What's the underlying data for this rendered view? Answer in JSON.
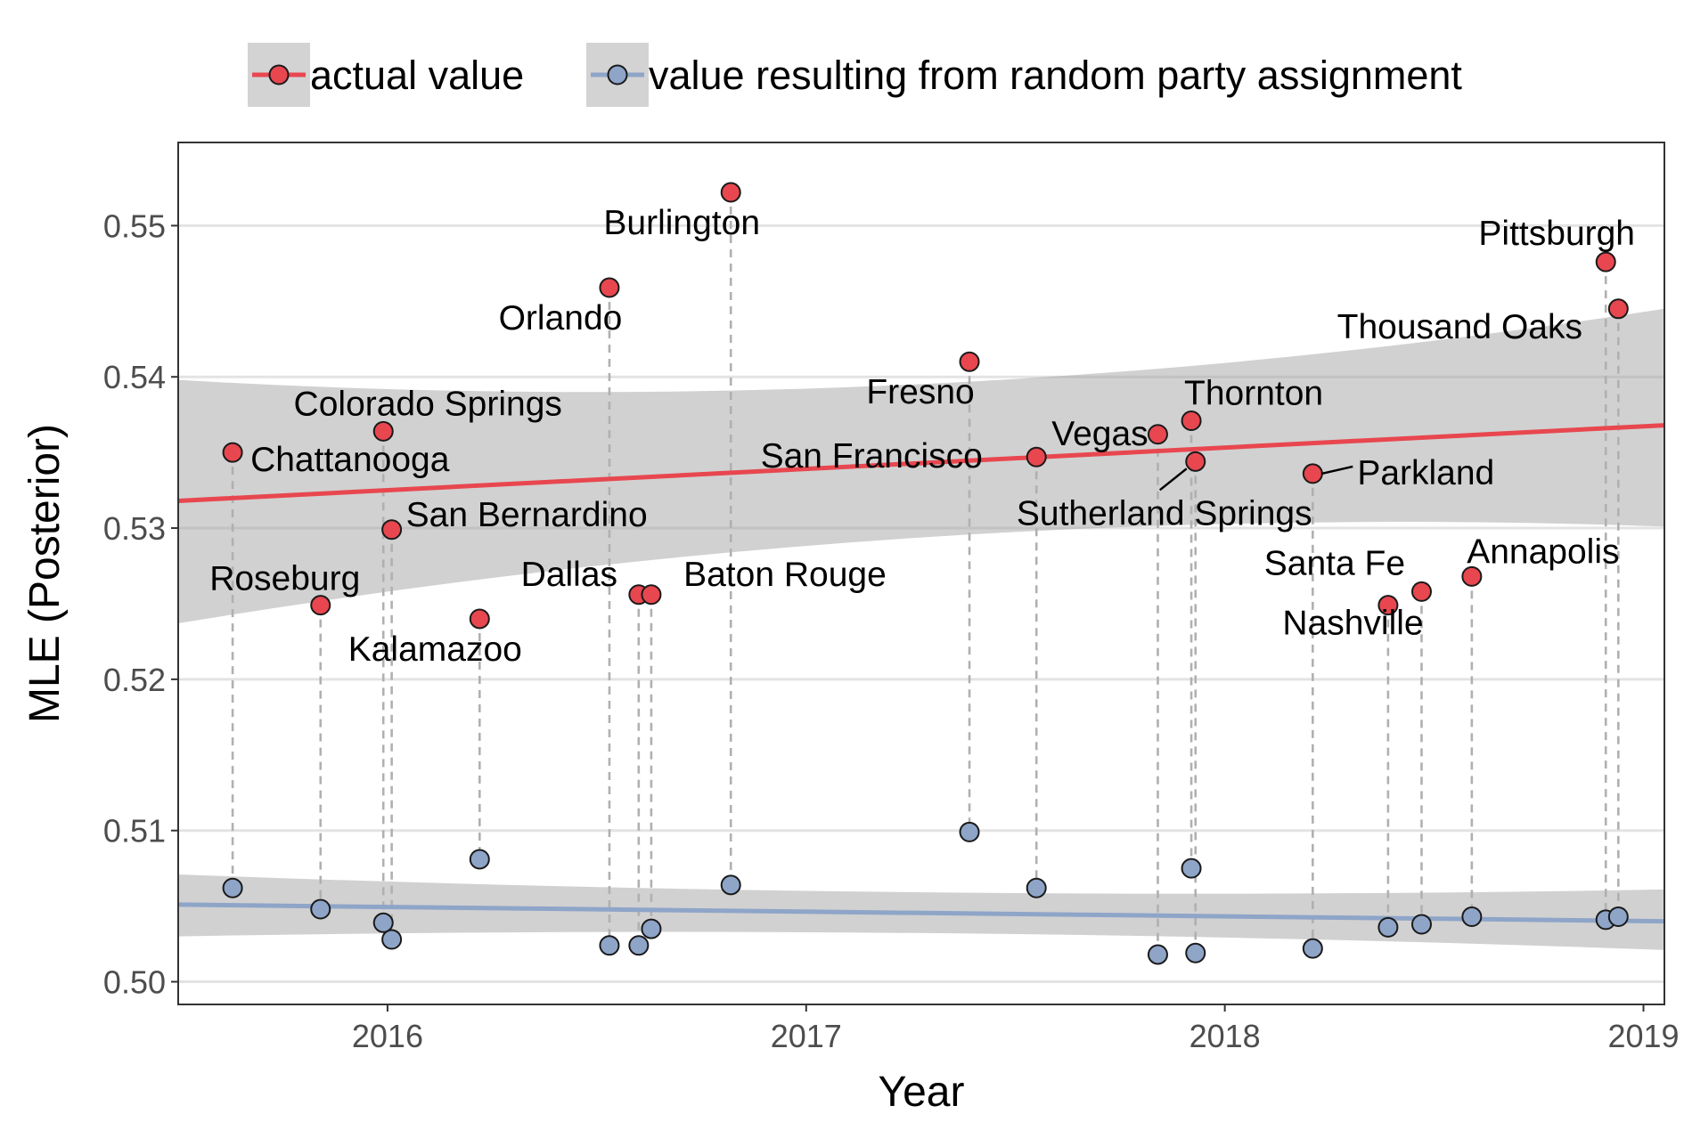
{
  "chart_data": {
    "type": "scatter",
    "xlabel": "Year",
    "ylabel": "MLE (Posterior)",
    "xlim": [
      2015.5,
      2019.05
    ],
    "ylim": [
      0.4985,
      0.5555
    ],
    "x_ticks": [
      2016,
      2017,
      2018,
      2019
    ],
    "x_tick_labels": [
      "2016",
      "2017",
      "2018",
      "2019"
    ],
    "y_ticks": [
      0.5,
      0.51,
      0.52,
      0.53,
      0.54,
      0.55
    ],
    "y_tick_labels": [
      "0.50",
      "0.51",
      "0.52",
      "0.53",
      "0.54",
      "0.55"
    ],
    "grid": true,
    "legend_position": "top",
    "series": [
      {
        "name": "actual value",
        "color": "#e8474f",
        "trend": {
          "start": 0.5318,
          "end": 0.5368,
          "band_lower": [
            0.5237,
            0.5301
          ],
          "band_upper": [
            0.5398,
            0.5445
          ]
        },
        "values": [
          0.535,
          0.5249,
          0.5364,
          0.5299,
          0.524,
          0.5459,
          0.5256,
          0.5256,
          0.5522,
          0.541,
          0.5347,
          0.5362,
          0.5371,
          0.5344,
          0.5336,
          0.5249,
          0.5258,
          0.5268,
          0.5476,
          0.5445
        ]
      },
      {
        "name": "value resulting from random party assignment",
        "color": "#8ea5c8",
        "trend": {
          "start": 0.5051,
          "end": 0.504,
          "band_lower": [
            0.503,
            0.5021
          ],
          "band_upper": [
            0.5071,
            0.5061
          ]
        },
        "values": [
          0.5062,
          0.5048,
          0.5039,
          0.5028,
          0.5081,
          0.5024,
          0.5024,
          0.5035,
          0.5064,
          0.5099,
          0.5062,
          0.5018,
          0.5075,
          0.5019,
          0.5022,
          0.5036,
          0.5038,
          0.5043,
          0.5041,
          0.5043
        ]
      }
    ],
    "events": [
      {
        "name": "Chattanooga",
        "x": 2015.63
      },
      {
        "name": "Roseburg",
        "x": 2015.84
      },
      {
        "name": "Colorado Springs",
        "x": 2015.99
      },
      {
        "name": "San Bernardino",
        "x": 2016.01
      },
      {
        "name": "Kalamazoo",
        "x": 2016.22
      },
      {
        "name": "Orlando",
        "x": 2016.53
      },
      {
        "name": "Dallas",
        "x": 2016.6
      },
      {
        "name": "Baton Rouge",
        "x": 2016.63
      },
      {
        "name": "Burlington",
        "x": 2016.82
      },
      {
        "name": "Fresno",
        "x": 2017.39
      },
      {
        "name": "San Francisco",
        "x": 2017.55
      },
      {
        "name": "Vegas",
        "x": 2017.84
      },
      {
        "name": "Thornton",
        "x": 2017.92
      },
      {
        "name": "Sutherland Springs",
        "x": 2017.93
      },
      {
        "name": "Parkland",
        "x": 2018.21
      },
      {
        "name": "Santa Fe",
        "x": 2018.39
      },
      {
        "name": "Nashville",
        "x": 2018.47
      },
      {
        "name": "Annapolis",
        "x": 2018.59
      },
      {
        "name": "Pittsburgh",
        "x": 2018.91
      },
      {
        "name": "Thousand Oaks",
        "x": 2018.94
      }
    ]
  }
}
